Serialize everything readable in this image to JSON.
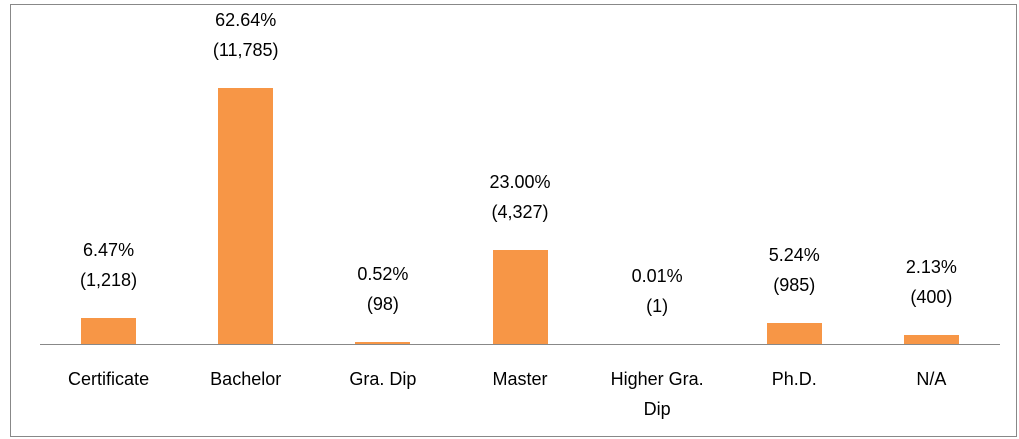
{
  "chart_data": {
    "type": "bar",
    "categories": [
      "Certificate",
      "Bachelor",
      "Gra. Dip",
      "Master",
      "Higher Gra. Dip",
      "Ph.D.",
      "N/A"
    ],
    "values": [
      6.47,
      62.64,
      0.52,
      23.0,
      0.01,
      5.24,
      2.13
    ],
    "value_labels": [
      "6.47%",
      "62.64%",
      "0.52%",
      "23.00%",
      "0.01%",
      "5.24%",
      "2.13%"
    ],
    "counts": [
      1218,
      11785,
      98,
      4327,
      1,
      985,
      400
    ],
    "count_labels": [
      "(1,218)",
      "(11,785)",
      "(98)",
      "(4,327)",
      "(1)",
      "(985)",
      "(400)"
    ],
    "color": "#f79646"
  }
}
